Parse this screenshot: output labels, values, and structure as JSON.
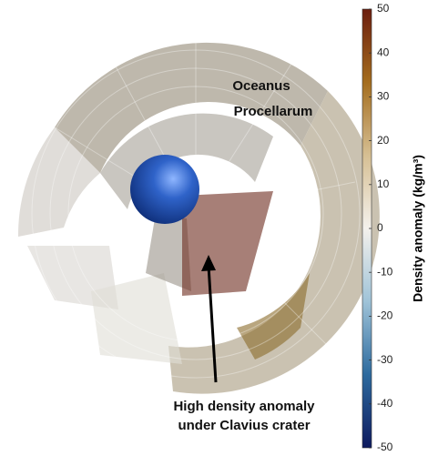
{
  "chart_data": {
    "type": "colorbar",
    "annotations": [
      "Oceanus",
      "Procellarum",
      "High density anomaly",
      "under Clavius crater"
    ],
    "colorbar_label": "Density anomaly (kg/m³)",
    "ylim": [
      -50,
      50
    ],
    "yticks": [
      50,
      40,
      30,
      20,
      10,
      0,
      -10,
      -20,
      -30,
      -40,
      -50
    ],
    "colormap": [
      "#0d1a5e",
      "#2d6a9e",
      "#9fc3d8",
      "#f4f1ec",
      "#d6bf93",
      "#a46d1e",
      "#6b1d0e"
    ]
  }
}
